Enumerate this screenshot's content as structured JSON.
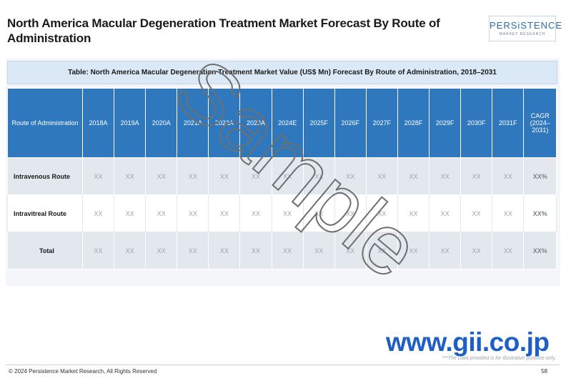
{
  "header": {
    "title": "North America Macular Degeneration Treatment Market Forecast By Route of Administration",
    "logo": "PERSiSTENCE",
    "logo_sub": "MARKET RESEARCH"
  },
  "table": {
    "caption": "Table: North America Macular Degeneration Treatment Market Value (US$ Mn) Forecast By Route of Administration, 2018–2031",
    "columns": [
      "Route of Administration",
      "2018A",
      "2019A",
      "2020A",
      "2021A",
      "2022A",
      "2023A",
      "2024E",
      "2025F",
      "2026F",
      "2027F",
      "2028F",
      "2029F",
      "2030F",
      "2031F",
      "CAGR (2024–2031)"
    ],
    "rows": [
      [
        "Intravenous Route",
        "XX",
        "XX",
        "XX",
        "XX",
        "XX",
        "XX",
        "XX",
        "XX",
        "XX",
        "XX",
        "XX",
        "XX",
        "XX",
        "XX",
        "XX%"
      ],
      [
        "Intravitreal Route",
        "XX",
        "XX",
        "XX",
        "XX",
        "XX",
        "XX",
        "XX",
        "XX",
        "XX",
        "XX",
        "XX",
        "XX",
        "XX",
        "XX",
        "XX%"
      ],
      [
        "Total",
        "XX",
        "XX",
        "XX",
        "XX",
        "XX",
        "XX",
        "XX",
        "XX",
        "XX",
        "XX",
        "XX",
        "XX",
        "XX",
        "XX",
        "XX%"
      ]
    ]
  },
  "watermark": "Sample",
  "site": "www.gii.co.jp",
  "note": "***The Data provided is for illustrative purpose only.",
  "footer": {
    "copyright": "© 2024 Persistence Market Research, All Rights Reserved",
    "page": 58
  }
}
